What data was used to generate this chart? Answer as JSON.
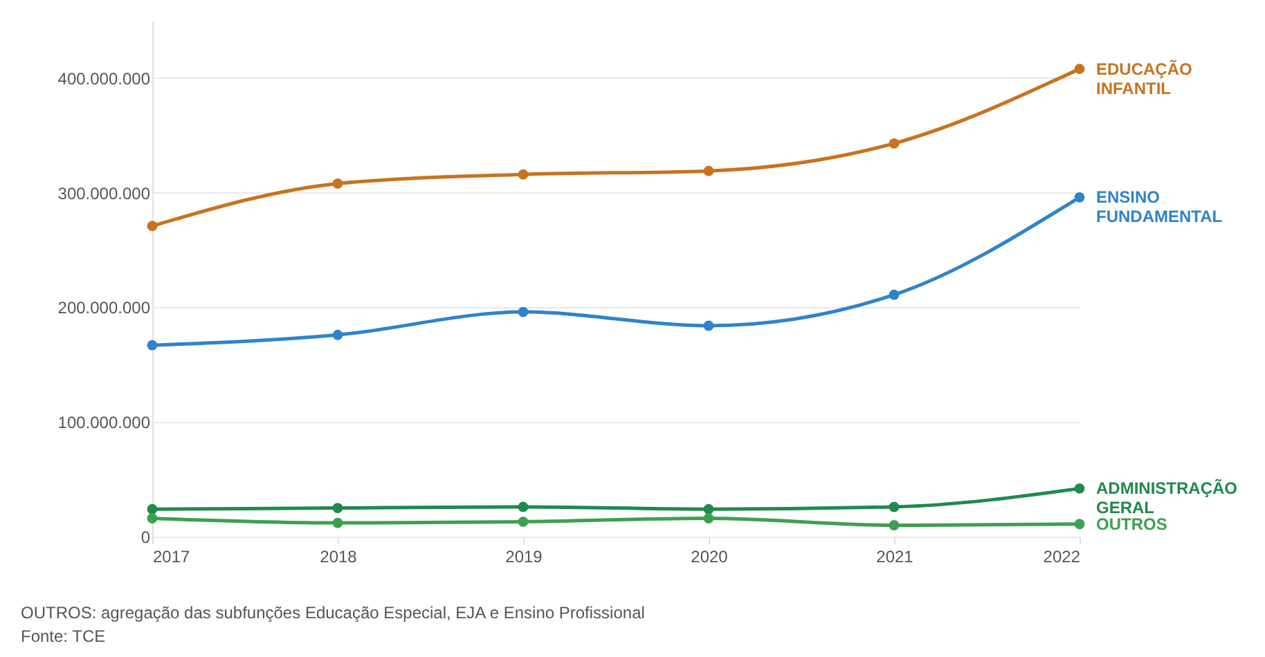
{
  "chart_data": {
    "type": "line",
    "x": [
      2017,
      2018,
      2019,
      2020,
      2021,
      2022
    ],
    "series": [
      {
        "name": "EDUCAÇÃO INFANTIL",
        "color": "#c8731f",
        "values": [
          271000000,
          308000000,
          316000000,
          319000000,
          343000000,
          408000000
        ]
      },
      {
        "name": "ENSINO FUNDAMENTAL",
        "color": "#2f83cc",
        "values": [
          167000000,
          176000000,
          196000000,
          184000000,
          211000000,
          296000000
        ]
      },
      {
        "name": "ADMINISTRAÇÃO GERAL",
        "color": "#1f8a4c",
        "values": [
          24000000,
          25000000,
          26000000,
          24000000,
          26000000,
          42000000
        ]
      },
      {
        "name": "OUTROS",
        "color": "#3da050",
        "values": [
          16000000,
          12000000,
          13000000,
          16000000,
          10000000,
          11000000
        ]
      }
    ],
    "xlim": [
      2017,
      2022
    ],
    "xticks": [
      2017,
      2018,
      2019,
      2020,
      2021,
      2022
    ],
    "ylim": [
      0,
      450000000
    ],
    "yticks": [
      0,
      {
        "value": 100000000,
        "label": "100.000.000"
      },
      {
        "value": 200000000,
        "label": "200.000.000"
      },
      {
        "value": 300000000,
        "label": "300.000.000"
      },
      {
        "value": 400000000,
        "label": "400.000.000"
      }
    ],
    "grid": "y",
    "legend": false,
    "marker": "circle",
    "line_style": "solid",
    "annotations": [
      "OUTROS: agregação das subfunções Educação Especial, EJA e Ensino Profissional",
      "Fonte: TCE"
    ]
  }
}
